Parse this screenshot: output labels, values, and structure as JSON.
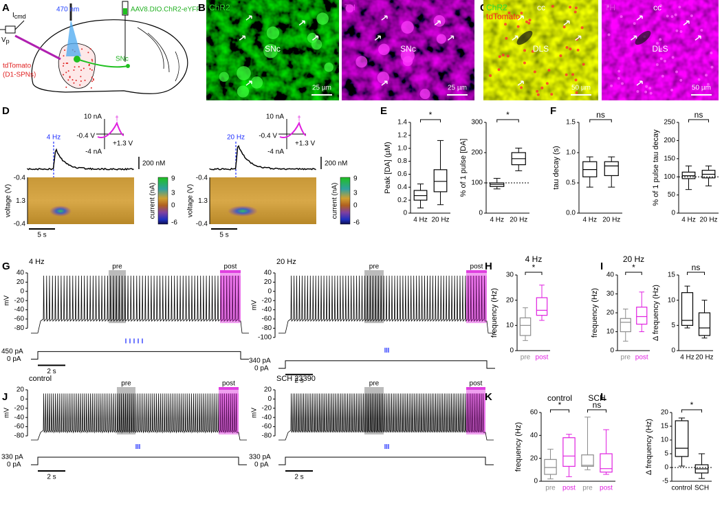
{
  "panel_labels": [
    "A",
    "B",
    "C",
    "D",
    "E",
    "F",
    "G",
    "H",
    "I",
    "J",
    "K",
    "L"
  ],
  "schematic": {
    "icmd": "I",
    "icmd_sub": "cmd",
    "vp": "V",
    "vp_sub": "p",
    "light": "470 nm",
    "virus": "AAV8.DIO.ChR2-eYFP",
    "reporter": "tdTomato",
    "cells": "(D1-SPNs)",
    "target": "SNc"
  },
  "micrographs": [
    {
      "channels": [
        "ChR2"
      ],
      "region": "SNc",
      "scale": "25 µm"
    },
    {
      "channels": [
        "TH"
      ],
      "region": "SNc",
      "scale": "25 µm"
    },
    {
      "channels": [
        "ChR2",
        "tdTomato"
      ],
      "marker": "cc",
      "region": "DLS",
      "scale": "50 µm"
    },
    {
      "channels": [
        "TH"
      ],
      "marker": "cc",
      "region": "DLS",
      "scale": "50 µm"
    }
  ],
  "voltammetry": [
    {
      "stim": "4 Hz",
      "cv_top": "10 nA",
      "cv_left": "-0.4 V",
      "cv_right": "+1.3 V",
      "cv_bottom": "-4 nA",
      "dagger": "†",
      "conc_scale": "200 nM",
      "ylabel": "voltage (V)",
      "yticks": [
        "-0.4",
        "1.3",
        "-0.4"
      ],
      "time_scale": "5 s",
      "cbar_label": "current (nA)",
      "cbar_ticks": [
        "9",
        "3",
        "0",
        "-6"
      ]
    },
    {
      "stim": "20 Hz",
      "cv_top": "10 nA",
      "cv_left": "-0.4 V",
      "cv_right": "+1.3 V",
      "cv_bottom": "-4 nA",
      "dagger": "†",
      "conc_scale": "200 nM",
      "ylabel": "voltage (V)",
      "yticks": [
        "-0.4",
        "1.3",
        "-0.4"
      ],
      "time_scale": "5 s",
      "cbar_label": "current (nA)",
      "cbar_ticks": [
        "9",
        "3",
        "0",
        "-6"
      ]
    }
  ],
  "patch": [
    {
      "title": "4 Hz",
      "pre": "pre",
      "post": "post",
      "ylabel": "mV",
      "yticks": [
        "40",
        "20",
        "0",
        "-20",
        "-40",
        "-60",
        "-80"
      ],
      "current": "450 pA",
      "zero": "0 pA",
      "time_scale": "2 s"
    },
    {
      "title": "20 Hz",
      "pre": "pre",
      "post": "post",
      "ylabel": "mV",
      "yticks": [
        "40",
        "20",
        "0",
        "-20",
        "-40",
        "-60",
        "-80",
        "-100"
      ],
      "current": "340 pA",
      "zero": "0 pA",
      "time_scale": "2 s"
    },
    {
      "title": "control",
      "pre": "pre",
      "post": "post",
      "ylabel": "mV",
      "yticks": [
        "20",
        "0",
        "-20",
        "-40",
        "-60",
        "-80"
      ],
      "current": "330 pA",
      "zero": "0 pA",
      "time_scale": "2 s"
    },
    {
      "title": "SCH 23390",
      "pre": "pre",
      "post": "post",
      "ylabel": "mV",
      "yticks": [
        "20",
        "0",
        "-20",
        "-40",
        "-60",
        "-80"
      ],
      "current": "330 pA",
      "zero": "0 pA",
      "time_scale": "2 s"
    }
  ],
  "chart_data": [
    {
      "type": "box",
      "ylabel": "Peak [DA] (µM)",
      "categories": [
        "4 Hz",
        "20 Hz"
      ],
      "colors": [
        "#000000",
        "#000000"
      ],
      "boxes": [
        {
          "whisker_low": 0.08,
          "q1": 0.2,
          "median": 0.27,
          "q3": 0.35,
          "whisker_high": 0.45
        },
        {
          "whisker_low": 0.13,
          "q1": 0.33,
          "median": 0.49,
          "q3": 0.67,
          "whisker_high": 1.12
        }
      ],
      "ylim": [
        0,
        1.4
      ],
      "yticks": [
        0,
        0.2,
        0.4,
        0.6,
        0.8,
        {
          "value": 1,
          "label": "1.0"
        },
        1.2,
        1.4
      ],
      "significance": [
        "*"
      ]
    },
    {
      "type": "box",
      "ylabel": "% of 1 pulse [DA]",
      "categories": [
        "4 Hz",
        "20 Hz"
      ],
      "colors": [
        "#000000",
        "#000000"
      ],
      "boxes": [
        {
          "whisker_low": 80,
          "q1": 88,
          "median": 95,
          "q3": 100,
          "whisker_high": 115
        },
        {
          "whisker_low": 140,
          "q1": 160,
          "median": 180,
          "q3": 200,
          "whisker_high": 215
        }
      ],
      "ylim": [
        0,
        300
      ],
      "yticks": [
        0,
        100,
        200,
        300
      ],
      "refline": 100,
      "significance": [
        "*"
      ]
    },
    {
      "type": "box",
      "ylabel": "tau decay (s)",
      "categories": [
        "4 Hz",
        "20 Hz"
      ],
      "colors": [
        "#000000",
        "#000000"
      ],
      "boxes": [
        {
          "whisker_low": 0.43,
          "q1": 0.6,
          "median": 0.72,
          "q3": 0.85,
          "whisker_high": 0.93
        },
        {
          "whisker_low": 0.43,
          "q1": 0.62,
          "median": 0.78,
          "q3": 0.85,
          "whisker_high": 0.93
        }
      ],
      "ylim": [
        0,
        1.5
      ],
      "yticks": [
        {
          "value": 0,
          "label": "0.0"
        },
        0.5,
        {
          "value": 1,
          "label": "1.0"
        },
        1.5
      ],
      "significance": [
        "ns"
      ]
    },
    {
      "type": "box",
      "ylabel": "% of 1 pulse tau decay",
      "categories": [
        "4 Hz",
        "20 Hz"
      ],
      "colors": [
        "#000000",
        "#000000"
      ],
      "boxes": [
        {
          "whisker_low": 65,
          "q1": 95,
          "median": 103,
          "q3": 113,
          "whisker_high": 130
        },
        {
          "whisker_low": 75,
          "q1": 97,
          "median": 107,
          "q3": 118,
          "whisker_high": 130
        }
      ],
      "ylim": [
        0,
        250
      ],
      "yticks": [
        0,
        50,
        100,
        150,
        200,
        250
      ],
      "refline": 100,
      "significance": [
        "ns"
      ]
    },
    {
      "type": "box",
      "title": "4 Hz",
      "ylabel": "frequency (Hz)",
      "categories": [
        "pre",
        "post"
      ],
      "colors": [
        "#8c8c8c",
        "#e020e0"
      ],
      "boxes": [
        {
          "whisker_low": 4,
          "q1": 6,
          "median": 10,
          "q3": 13,
          "whisker_high": 17
        },
        {
          "whisker_low": 12,
          "q1": 14,
          "median": 16,
          "q3": 21,
          "whisker_high": 26
        }
      ],
      "ylim": [
        0,
        30
      ],
      "yticks": [
        0,
        10,
        20,
        30
      ],
      "significance": [
        "*"
      ]
    },
    {
      "type": "box",
      "title": "20 Hz",
      "ylabel": "frequency (Hz)",
      "categories": [
        "pre",
        "post"
      ],
      "colors": [
        "#8c8c8c",
        "#e020e0"
      ],
      "boxes": [
        {
          "whisker_low": 5,
          "q1": 10,
          "median": 15,
          "q3": 17,
          "whisker_high": 22
        },
        {
          "whisker_low": 10,
          "q1": 14,
          "median": 18,
          "q3": 23,
          "whisker_high": 31
        }
      ],
      "ylim": [
        0,
        40
      ],
      "yticks": [
        0,
        10,
        20,
        30,
        40
      ],
      "significance": [
        "*"
      ]
    },
    {
      "type": "box",
      "ylabel": "Δ frequency (Hz)",
      "categories": [
        "4 Hz",
        "20 Hz"
      ],
      "colors": [
        "#000000",
        "#000000"
      ],
      "boxes": [
        {
          "whisker_low": 4.5,
          "q1": 5,
          "median": 6,
          "q3": 11.5,
          "whisker_high": 12.8
        },
        {
          "whisker_low": 2.5,
          "q1": 3,
          "median": 4.5,
          "q3": 7.5,
          "whisker_high": 10
        }
      ],
      "ylim": [
        0,
        15
      ],
      "yticks": [
        0,
        5,
        10,
        15
      ],
      "significance": [
        "ns"
      ]
    },
    {
      "type": "box",
      "ylabel": "frequency (Hz)",
      "categories": [
        "pre",
        "post",
        "pre",
        "post"
      ],
      "groups": [
        "control",
        "SCH"
      ],
      "colors": [
        "#8c8c8c",
        "#e020e0",
        "#8c8c8c",
        "#e020e0"
      ],
      "boxes": [
        {
          "whisker_low": 2,
          "q1": 6,
          "median": 12,
          "q3": 19,
          "whisker_high": 28
        },
        {
          "whisker_low": 4,
          "q1": 13,
          "median": 22,
          "q3": 38,
          "whisker_high": 41
        },
        {
          "whisker_low": 10,
          "q1": 13,
          "median": 14,
          "q3": 23,
          "whisker_high": 56
        },
        {
          "whisker_low": 6,
          "q1": 8,
          "median": 11,
          "q3": 24,
          "whisker_high": 45
        }
      ],
      "ylim": [
        0,
        60
      ],
      "yticks": [
        0,
        20,
        40,
        60
      ],
      "significance": [
        "*",
        "ns"
      ]
    },
    {
      "type": "box",
      "ylabel": "Δ frequency (Hz)",
      "categories": [
        "control",
        "SCH"
      ],
      "colors": [
        "#000000",
        "#000000"
      ],
      "boxes": [
        {
          "whisker_low": 0.5,
          "q1": 4,
          "median": 7,
          "q3": 17,
          "whisker_high": 18
        },
        {
          "whisker_low": -4,
          "q1": -2,
          "median": -0.5,
          "q3": 1,
          "whisker_high": 5
        }
      ],
      "ylim": [
        -5,
        20
      ],
      "yticks": [
        -5,
        0,
        5,
        10,
        15,
        20
      ],
      "refline": 0,
      "significance": [
        "*"
      ]
    }
  ]
}
